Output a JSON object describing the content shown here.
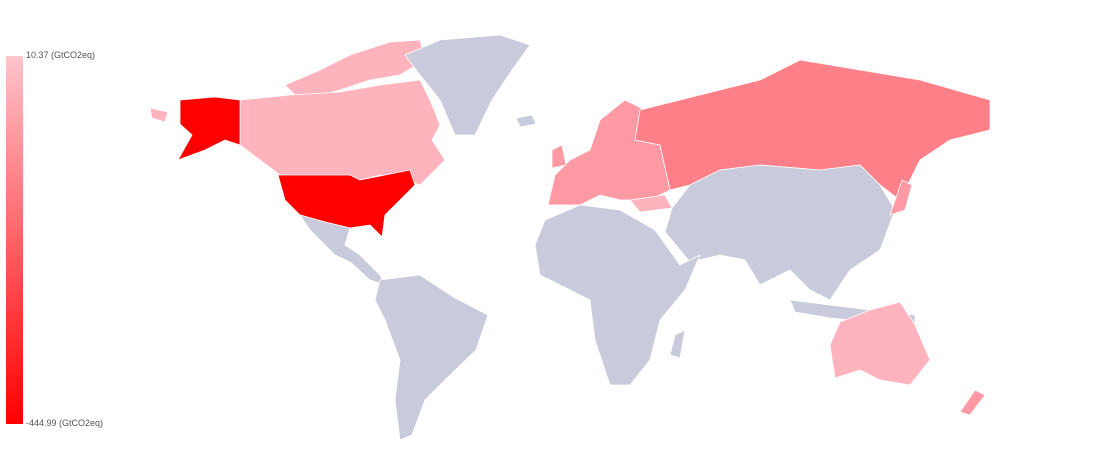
{
  "legend": {
    "max_label": "10.37 (GtCO2eq)",
    "min_label": "-444.99 (GtCO2eq)",
    "max_color": "#ffc4cc",
    "min_color": "#ff0000"
  },
  "colors": {
    "no_data": "#c9cbdc",
    "usa": "#ff0000",
    "alaska": "#ff0000",
    "canada": "#ffb3bd",
    "russia": "#ff8088",
    "europe": "#ff9aa5",
    "australia": "#ffb3be",
    "new_zealand": "#ff9aa5",
    "japan": "#ff9aa5",
    "turkey": "#ffb3bd"
  }
}
